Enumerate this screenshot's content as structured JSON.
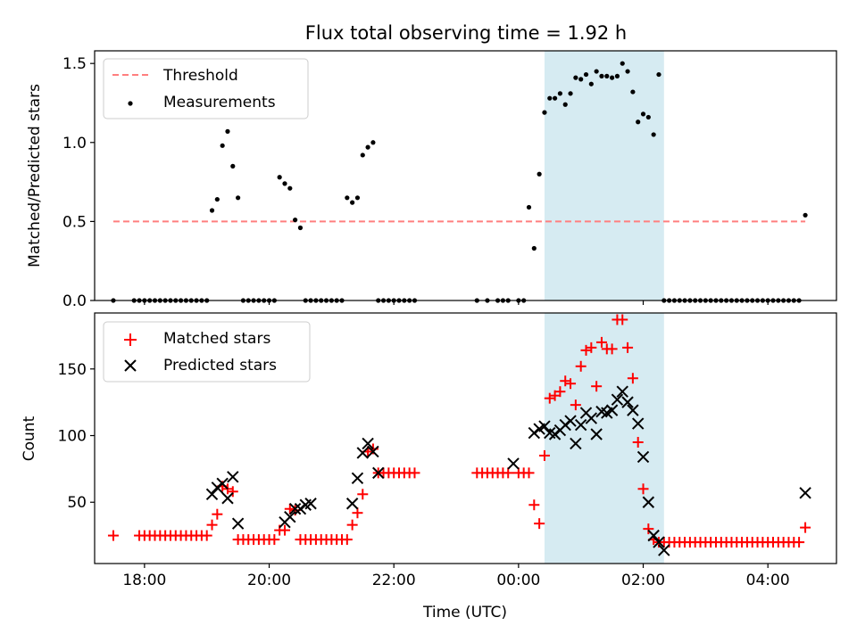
{
  "title": "Flux total observing time = 1.92 h",
  "colors": {
    "threshold": "#ff7f7f",
    "measurement": "#000000",
    "matched": "#ff0000",
    "predicted": "#000000",
    "shade": "#add8e6"
  },
  "chart_data": [
    {
      "type": "scatter",
      "xlabel": "",
      "ylabel": "Matched/Predicted stars",
      "xlim": [
        "17:12",
        "05:06"
      ],
      "ylim": [
        0,
        1.58
      ],
      "yticks": [
        0.0,
        0.5,
        1.0,
        1.5
      ],
      "ytick_labels": [
        "0.0",
        "0.5",
        "1.0",
        "1.5"
      ],
      "x_tick_labels": [],
      "shaded_region": [
        "00:25",
        "02:20"
      ],
      "legend": {
        "placement": "upper-left",
        "entries": [
          "Threshold",
          "Measurements"
        ]
      },
      "series": [
        {
          "name": "Threshold",
          "style": "dashed-line",
          "x": [
            "17:30",
            "04:36"
          ],
          "y": [
            0.5,
            0.5
          ]
        },
        {
          "name": "Measurements",
          "style": "dot",
          "x": [
            "17:30",
            "17:50",
            "17:55",
            "18:00",
            "18:05",
            "18:10",
            "18:15",
            "18:20",
            "18:25",
            "18:30",
            "18:35",
            "18:40",
            "18:45",
            "18:50",
            "18:55",
            "19:00",
            "19:05",
            "19:10",
            "19:15",
            "19:20",
            "19:25",
            "19:30",
            "19:35",
            "19:40",
            "19:45",
            "19:50",
            "19:55",
            "20:00",
            "20:05",
            "20:10",
            "20:15",
            "20:20",
            "20:25",
            "20:30",
            "20:35",
            "20:40",
            "20:45",
            "20:50",
            "20:55",
            "21:00",
            "21:05",
            "21:10",
            "21:15",
            "21:20",
            "21:25",
            "21:30",
            "21:35",
            "21:40",
            "21:45",
            "21:50",
            "21:55",
            "22:00",
            "22:05",
            "22:10",
            "22:15",
            "22:20",
            "23:20",
            "23:30",
            "23:40",
            "23:45",
            "23:50",
            "00:00",
            "00:05",
            "00:10",
            "00:15",
            "00:20",
            "00:25",
            "00:30",
            "00:35",
            "00:40",
            "00:45",
            "00:50",
            "00:55",
            "01:00",
            "01:05",
            "01:10",
            "01:15",
            "01:20",
            "01:25",
            "01:30",
            "01:35",
            "01:40",
            "01:45",
            "01:50",
            "01:55",
            "02:00",
            "02:05",
            "02:10",
            "02:15",
            "02:20",
            "02:25",
            "02:30",
            "02:35",
            "02:40",
            "02:45",
            "02:50",
            "02:55",
            "03:00",
            "03:05",
            "03:10",
            "03:15",
            "03:20",
            "03:25",
            "03:30",
            "03:35",
            "03:40",
            "03:45",
            "03:50",
            "03:55",
            "04:00",
            "04:05",
            "04:10",
            "04:15",
            "04:20",
            "04:25",
            "04:30",
            "04:36"
          ],
          "y": [
            0.0,
            0.0,
            0.0,
            0.0,
            0.0,
            0.0,
            0.0,
            0.0,
            0.0,
            0.0,
            0.0,
            0.0,
            0.0,
            0.0,
            0.0,
            0.0,
            0.57,
            0.64,
            0.98,
            1.07,
            0.85,
            0.65,
            0.0,
            0.0,
            0.0,
            0.0,
            0.0,
            0.0,
            0.0,
            0.78,
            0.74,
            0.71,
            0.51,
            0.46,
            0.0,
            0.0,
            0.0,
            0.0,
            0.0,
            0.0,
            0.0,
            0.0,
            0.65,
            0.62,
            0.65,
            0.92,
            0.97,
            1.0,
            0.0,
            0.0,
            0.0,
            0.0,
            0.0,
            0.0,
            0.0,
            0.0,
            0.0,
            0.0,
            0.0,
            0.0,
            0.0,
            0.0,
            0.0,
            0.59,
            0.33,
            0.8,
            1.19,
            1.28,
            1.28,
            1.31,
            1.24,
            1.31,
            1.41,
            1.4,
            1.43,
            1.37,
            1.45,
            1.42,
            1.42,
            1.41,
            1.42,
            1.5,
            1.45,
            1.32,
            1.13,
            1.18,
            1.16,
            1.05,
            1.43,
            0.0,
            0.0,
            0.0,
            0.0,
            0.0,
            0.0,
            0.0,
            0.0,
            0.0,
            0.0,
            0.0,
            0.0,
            0.0,
            0.0,
            0.0,
            0.0,
            0.0,
            0.0,
            0.0,
            0.0,
            0.0,
            0.0,
            0.0,
            0.0,
            0.0,
            0.0,
            0.0,
            0.54
          ]
        }
      ]
    },
    {
      "type": "scatter",
      "xlabel": "Time (UTC)",
      "ylabel": "Count",
      "xlim": [
        "17:12",
        "05:06"
      ],
      "ylim": [
        4,
        192
      ],
      "yticks": [
        50,
        100,
        150
      ],
      "ytick_labels": [
        "50",
        "100",
        "150"
      ],
      "x_tick_labels": [
        "18:00",
        "20:00",
        "22:00",
        "00:00",
        "02:00",
        "04:00"
      ],
      "shaded_region": [
        "00:25",
        "02:20"
      ],
      "legend": {
        "placement": "upper-left",
        "entries": [
          "Matched stars",
          "Predicted stars"
        ]
      },
      "series": [
        {
          "name": "Matched stars",
          "style": "plus",
          "x": [
            "17:30",
            "17:55",
            "18:00",
            "18:05",
            "18:10",
            "18:15",
            "18:20",
            "18:25",
            "18:30",
            "18:35",
            "18:40",
            "18:45",
            "18:50",
            "18:55",
            "19:00",
            "19:05",
            "19:10",
            "19:15",
            "19:20",
            "19:25",
            "19:30",
            "19:35",
            "19:40",
            "19:45",
            "19:50",
            "19:55",
            "20:00",
            "20:05",
            "20:10",
            "20:15",
            "20:20",
            "20:25",
            "20:30",
            "20:35",
            "20:40",
            "20:45",
            "20:50",
            "20:55",
            "21:00",
            "21:05",
            "21:10",
            "21:15",
            "21:20",
            "21:25",
            "21:30",
            "21:35",
            "21:40",
            "21:45",
            "21:50",
            "21:55",
            "22:00",
            "22:05",
            "22:10",
            "22:15",
            "22:20",
            "23:20",
            "23:25",
            "23:30",
            "23:35",
            "23:40",
            "23:45",
            "23:50",
            "00:00",
            "00:05",
            "00:10",
            "00:15",
            "00:20",
            "00:25",
            "00:30",
            "00:35",
            "00:40",
            "00:45",
            "00:50",
            "00:55",
            "01:00",
            "01:05",
            "01:10",
            "01:15",
            "01:20",
            "01:25",
            "01:30",
            "01:35",
            "01:40",
            "01:45",
            "01:50",
            "01:55",
            "02:00",
            "02:05",
            "02:10",
            "02:15",
            "02:20",
            "02:25",
            "02:30",
            "02:35",
            "02:40",
            "02:45",
            "02:50",
            "02:55",
            "03:00",
            "03:05",
            "03:10",
            "03:15",
            "03:20",
            "03:25",
            "03:30",
            "03:35",
            "03:40",
            "03:45",
            "03:50",
            "03:55",
            "04:00",
            "04:05",
            "04:10",
            "04:15",
            "04:20",
            "04:25",
            "04:30",
            "04:36"
          ],
          "y": [
            25,
            25,
            25,
            25,
            25,
            25,
            25,
            25,
            25,
            25,
            25,
            25,
            25,
            25,
            25,
            33,
            41,
            62,
            60,
            58,
            22,
            22,
            22,
            22,
            22,
            22,
            22,
            22,
            29,
            29,
            45,
            44,
            22,
            22,
            22,
            22,
            22,
            22,
            22,
            22,
            22,
            22,
            33,
            42,
            56,
            88,
            90,
            72,
            72,
            72,
            72,
            72,
            72,
            72,
            72,
            72,
            72,
            72,
            72,
            72,
            72,
            72,
            72,
            72,
            72,
            48,
            34,
            85,
            128,
            130,
            133,
            141,
            139,
            123,
            152,
            164,
            166,
            137,
            170,
            165,
            165,
            187,
            187,
            166,
            143,
            95,
            60,
            30,
            22,
            20,
            20,
            20,
            20,
            20,
            20,
            20,
            20,
            20,
            20,
            20,
            20,
            20,
            20,
            20,
            20,
            20,
            20,
            20,
            20,
            20,
            20,
            20,
            20,
            20,
            20,
            20,
            20,
            31
          ]
        },
        {
          "name": "Predicted stars",
          "style": "x",
          "x": [
            "19:05",
            "19:10",
            "19:15",
            "19:20",
            "19:25",
            "19:30",
            "20:15",
            "20:20",
            "20:25",
            "20:30",
            "20:35",
            "20:40",
            "21:20",
            "21:25",
            "21:30",
            "21:35",
            "21:40",
            "21:45",
            "23:55",
            "00:15",
            "00:20",
            "00:25",
            "00:30",
            "00:35",
            "00:40",
            "00:45",
            "00:50",
            "00:55",
            "01:00",
            "01:05",
            "01:10",
            "01:15",
            "01:20",
            "01:25",
            "01:30",
            "01:35",
            "01:40",
            "01:45",
            "01:50",
            "01:55",
            "02:00",
            "02:05",
            "02:10",
            "02:15",
            "02:20",
            "04:36"
          ],
          "y": [
            56,
            61,
            64,
            53,
            69,
            34,
            35,
            39,
            45,
            45,
            48,
            49,
            49,
            68,
            87,
            94,
            88,
            72,
            79,
            102,
            105,
            107,
            102,
            101,
            104,
            108,
            111,
            94,
            108,
            117,
            113,
            101,
            118,
            117,
            119,
            127,
            133,
            125,
            119,
            109,
            84,
            50,
            25,
            20,
            14,
            57
          ]
        }
      ]
    }
  ]
}
